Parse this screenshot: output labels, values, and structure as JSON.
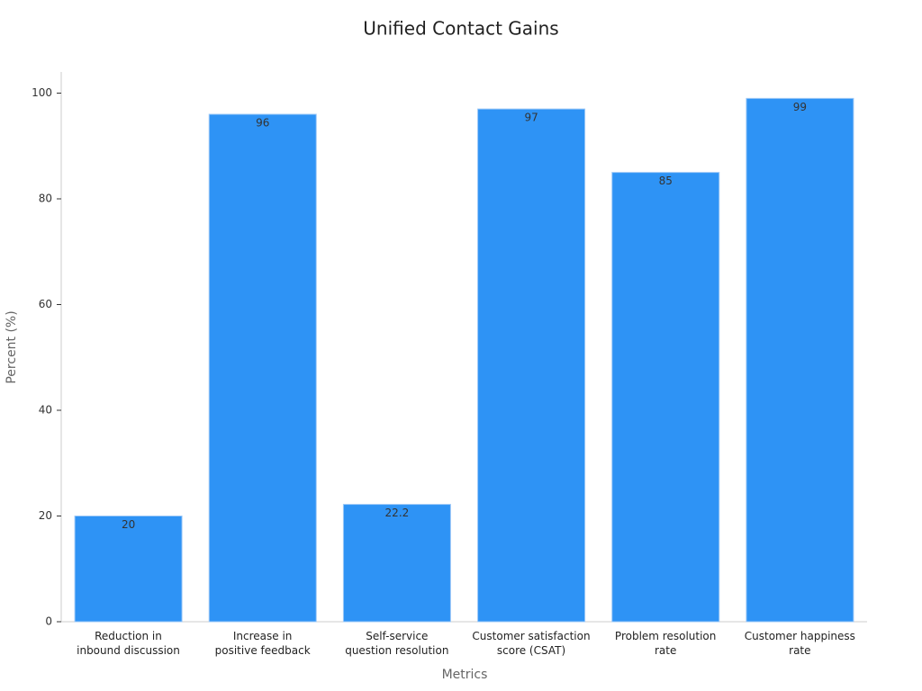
{
  "chart_data": {
    "type": "bar",
    "title": "Unified Contact Gains",
    "x_label": "Metrics",
    "y_label": "Percent (%)",
    "categories": [
      "Reduction in\ninbound discussion",
      "Increase in\npositive feedback",
      "Self-service\nquestion resolution",
      "Customer satisfaction\nscore (CSAT)",
      "Problem resolution\nrate",
      "Customer happiness\nrate"
    ],
    "values": [
      20,
      96,
      22.2,
      97,
      85,
      99
    ],
    "color": "#2e93f5",
    "ylim": [
      0,
      104
    ],
    "yticks": [
      0,
      20,
      40,
      60,
      80,
      100
    ]
  }
}
